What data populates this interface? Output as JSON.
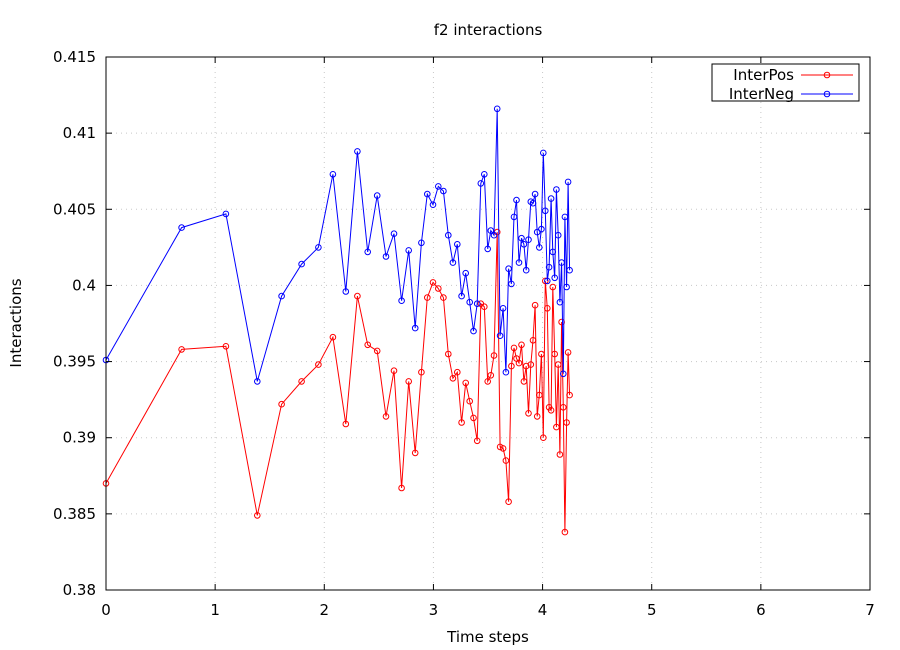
{
  "chart_data": {
    "type": "line",
    "title": "f2 interactions",
    "xlabel": "Time steps",
    "ylabel": "Interactions",
    "xlim": [
      0,
      7
    ],
    "ylim": [
      0.38,
      0.415
    ],
    "grid": true,
    "legend_position": "top-right",
    "x_ticks": [
      "0",
      "1",
      "2",
      "3",
      "4",
      "5",
      "6",
      "7"
    ],
    "y_ticks": [
      "0.38",
      "0.385",
      "0.39",
      "0.395",
      "0.4",
      "0.405",
      "0.41",
      "0.415"
    ],
    "series": [
      {
        "name": "InterPos",
        "color": "#ff0000",
        "marker": "circle",
        "x": [
          0,
          0.693,
          1.099,
          1.386,
          1.609,
          1.792,
          1.946,
          2.079,
          2.197,
          2.303,
          2.398,
          2.485,
          2.565,
          2.639,
          2.708,
          2.773,
          2.833,
          2.89,
          2.944,
          2.996,
          3.045,
          3.091,
          3.136,
          3.178,
          3.219,
          3.258,
          3.296,
          3.332,
          3.367,
          3.401,
          3.434,
          3.466,
          3.497,
          3.526,
          3.555,
          3.584,
          3.611,
          3.638,
          3.664,
          3.689,
          3.714,
          3.738,
          3.761,
          3.784,
          3.807,
          3.829,
          3.85,
          3.871,
          3.892,
          3.912,
          3.932,
          3.951,
          3.97,
          3.989,
          4.007,
          4.025,
          4.043,
          4.06,
          4.078,
          4.094,
          4.111,
          4.127,
          4.143,
          4.159,
          4.174,
          4.19,
          4.205,
          4.22,
          4.234,
          4.248
        ],
        "y": [
          0.387,
          0.3958,
          0.396,
          0.3849,
          0.3922,
          0.3937,
          0.3948,
          0.3966,
          0.3909,
          0.3993,
          0.3961,
          0.3957,
          0.3914,
          0.3944,
          0.3867,
          0.3937,
          0.389,
          0.3943,
          0.3992,
          0.4002,
          0.3998,
          0.3992,
          0.3955,
          0.3939,
          0.3943,
          0.391,
          0.3936,
          0.3924,
          0.3913,
          0.3898,
          0.3988,
          0.3986,
          0.3937,
          0.3941,
          0.3954,
          0.4035,
          0.3894,
          0.3893,
          0.3885,
          0.3858,
          0.3947,
          0.3959,
          0.3952,
          0.3949,
          0.3961,
          0.3937,
          0.3947,
          0.3916,
          0.3948,
          0.3964,
          0.3987,
          0.3914,
          0.3928,
          0.3955,
          0.39,
          0.4003,
          0.3985,
          0.392,
          0.3918,
          0.3999,
          0.3955,
          0.3907,
          0.3948,
          0.3889,
          0.3976,
          0.392,
          0.3838,
          0.391,
          0.3956,
          0.3928
        ]
      },
      {
        "name": "InterNeg",
        "color": "#0000ff",
        "marker": "circle",
        "x": [
          0,
          0.693,
          1.099,
          1.386,
          1.609,
          1.792,
          1.946,
          2.079,
          2.197,
          2.303,
          2.398,
          2.485,
          2.565,
          2.639,
          2.708,
          2.773,
          2.833,
          2.89,
          2.944,
          2.996,
          3.045,
          3.091,
          3.136,
          3.178,
          3.219,
          3.258,
          3.296,
          3.332,
          3.367,
          3.401,
          3.434,
          3.466,
          3.497,
          3.526,
          3.555,
          3.584,
          3.611,
          3.638,
          3.664,
          3.689,
          3.714,
          3.738,
          3.761,
          3.784,
          3.807,
          3.829,
          3.85,
          3.871,
          3.892,
          3.912,
          3.932,
          3.951,
          3.97,
          3.989,
          4.007,
          4.025,
          4.043,
          4.06,
          4.078,
          4.094,
          4.111,
          4.127,
          4.143,
          4.159,
          4.174,
          4.19,
          4.205,
          4.22,
          4.234,
          4.248
        ],
        "y": [
          0.3951,
          0.4038,
          0.4047,
          0.3937,
          0.3993,
          0.4014,
          0.4025,
          0.4073,
          0.3996,
          0.4088,
          0.4022,
          0.4059,
          0.4019,
          0.4034,
          0.399,
          0.4023,
          0.3972,
          0.4028,
          0.406,
          0.4053,
          0.4065,
          0.4062,
          0.4033,
          0.4015,
          0.4027,
          0.3993,
          0.4008,
          0.3989,
          0.397,
          0.3988,
          0.4067,
          0.4073,
          0.4024,
          0.4036,
          0.4033,
          0.4116,
          0.3967,
          0.3985,
          0.3943,
          0.4011,
          0.4001,
          0.4045,
          0.4056,
          0.4015,
          0.4031,
          0.4027,
          0.401,
          0.403,
          0.4055,
          0.4054,
          0.406,
          0.4035,
          0.4025,
          0.4037,
          0.4087,
          0.4049,
          0.4003,
          0.4012,
          0.4057,
          0.4022,
          0.4005,
          0.4063,
          0.4033,
          0.3989,
          0.4015,
          0.3942,
          0.4045,
          0.3999,
          0.4068,
          0.401
        ]
      }
    ]
  }
}
